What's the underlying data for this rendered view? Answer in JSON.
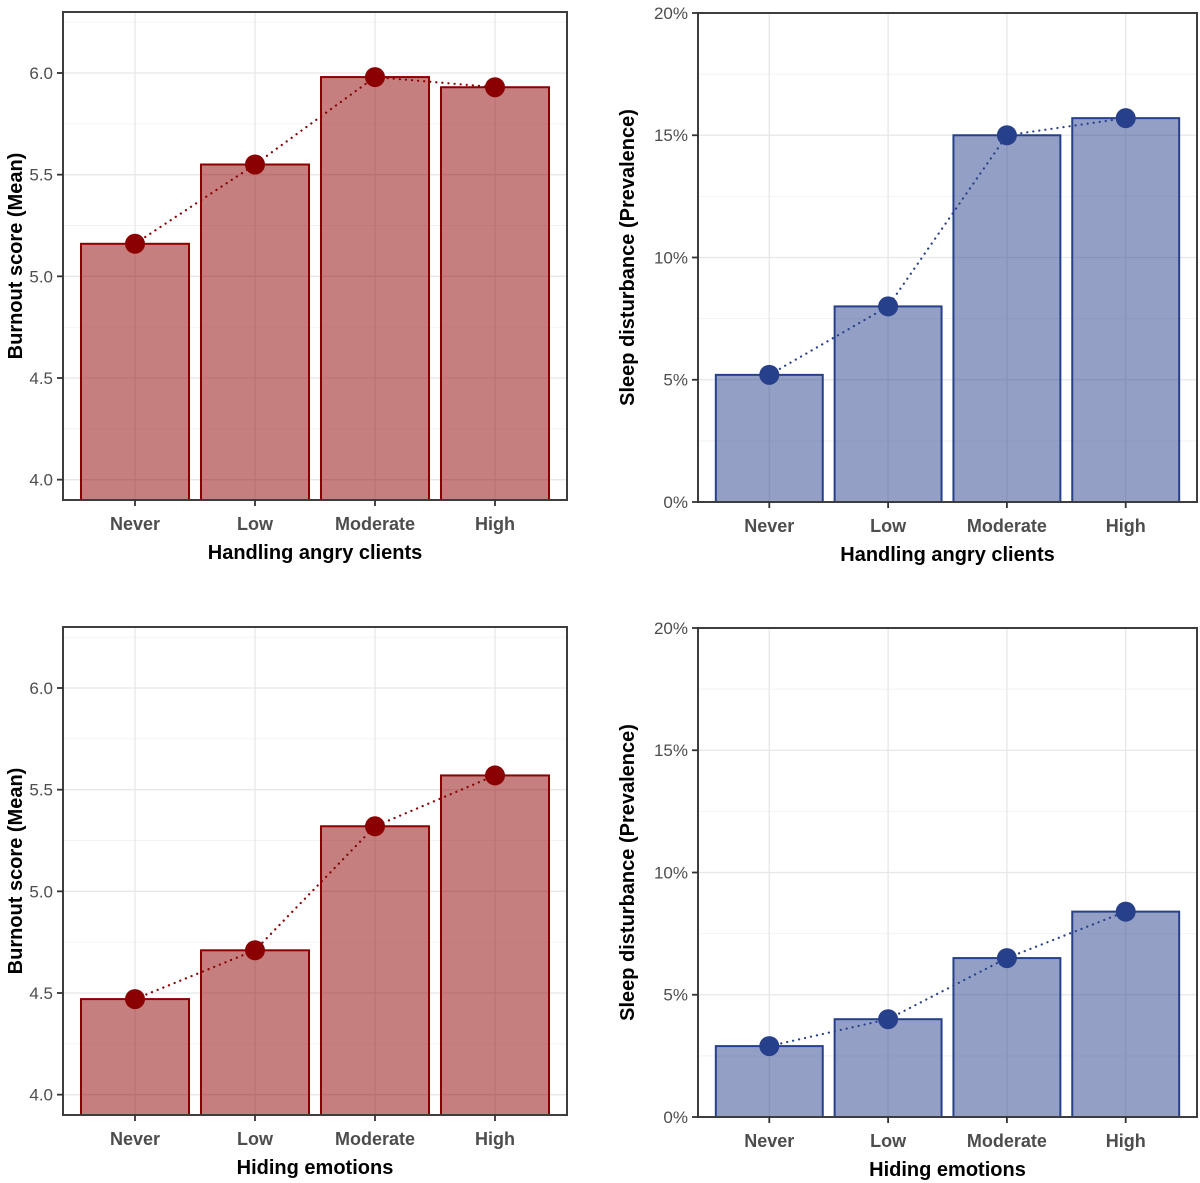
{
  "page": {
    "background": "#FFFFFF"
  },
  "theme": {
    "panel_background": "#FFFFFF",
    "panel_border_color": "#3D3D3D",
    "grid_major_color": "#E7E7E7",
    "grid_minor_color": "#F2F2F2",
    "tick_mark_color": "#333333",
    "tick_label_color": "#4D4D4D",
    "axis_title_color": "#000000",
    "red_accent": "#8B0000",
    "blue_accent": "#27408B"
  },
  "chart_data": [
    {
      "id": "burnout-by-handling-angry-clients",
      "type": "bar",
      "overlay": "dotted-line-with-points",
      "title": "",
      "xlabel": "Handling angry clients",
      "ylabel": "Burnout score (Mean)",
      "categories": [
        "Never",
        "Low",
        "Moderate",
        "High"
      ],
      "values": [
        5.16,
        5.55,
        5.98,
        5.93
      ],
      "ylim": [
        3.9,
        6.3
      ],
      "yticks": [
        4.0,
        4.5,
        5.0,
        5.5,
        6.0
      ],
      "ytick_labels": [
        "4.0",
        "4.5",
        "5.0",
        "5.5",
        "6.0"
      ],
      "yminor": [
        4.25,
        4.75,
        5.25,
        5.75,
        6.25
      ],
      "color": "#8B0000",
      "fill_opacity": 0.5,
      "grid": true,
      "legend": "none"
    },
    {
      "id": "sleep-disturbance-by-handling-angry-clients",
      "type": "bar",
      "overlay": "dotted-line-with-points",
      "title": "",
      "xlabel": "Handling angry clients",
      "ylabel": "Sleep disturbance (Prevalence)",
      "categories": [
        "Never",
        "Low",
        "Moderate",
        "High"
      ],
      "values": [
        5.2,
        8.0,
        15.0,
        15.7
      ],
      "ylim": [
        0,
        20
      ],
      "yticks": [
        0,
        5,
        10,
        15,
        20
      ],
      "ytick_labels": [
        "0%",
        "5%",
        "10%",
        "15%",
        "20%"
      ],
      "yminor": [
        2.5,
        7.5,
        12.5,
        17.5
      ],
      "color": "#27408B",
      "fill_opacity": 0.5,
      "grid": true,
      "legend": "none"
    },
    {
      "id": "burnout-by-hiding-emotions",
      "type": "bar",
      "overlay": "dotted-line-with-points",
      "title": "",
      "xlabel": "Hiding emotions",
      "ylabel": "Burnout score (Mean)",
      "categories": [
        "Never",
        "Low",
        "Moderate",
        "High"
      ],
      "values": [
        4.47,
        4.71,
        5.32,
        5.57
      ],
      "ylim": [
        3.9,
        6.3
      ],
      "yticks": [
        4.0,
        4.5,
        5.0,
        5.5,
        6.0
      ],
      "ytick_labels": [
        "4.0",
        "4.5",
        "5.0",
        "5.5",
        "6.0"
      ],
      "yminor": [
        4.25,
        4.75,
        5.25,
        5.75,
        6.25
      ],
      "color": "#8B0000",
      "fill_opacity": 0.5,
      "grid": true,
      "legend": "none"
    },
    {
      "id": "sleep-disturbance-by-hiding-emotions",
      "type": "bar",
      "overlay": "dotted-line-with-points",
      "title": "",
      "xlabel": "Hiding emotions",
      "ylabel": "Sleep disturbance (Prevalence)",
      "categories": [
        "Never",
        "Low",
        "Moderate",
        "High"
      ],
      "values": [
        2.9,
        4.0,
        6.5,
        8.4
      ],
      "ylim": [
        0,
        20
      ],
      "yticks": [
        0,
        5,
        10,
        15,
        20
      ],
      "ytick_labels": [
        "0%",
        "5%",
        "10%",
        "15%",
        "20%"
      ],
      "yminor": [
        2.5,
        7.5,
        12.5,
        17.5
      ],
      "color": "#27408B",
      "fill_opacity": 0.5,
      "grid": true,
      "legend": "none"
    }
  ]
}
